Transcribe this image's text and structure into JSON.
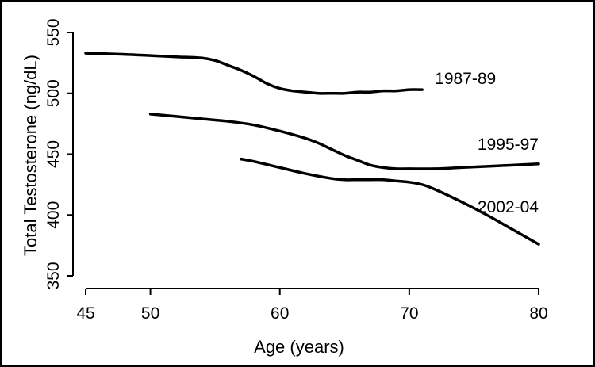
{
  "chart_data": {
    "type": "line",
    "title": "",
    "xlabel": "Age (years)",
    "ylabel": "Total Testosterone (ng/dL)",
    "xlim": [
      45,
      80
    ],
    "ylim": [
      350,
      550
    ],
    "xticks": [
      45,
      50,
      60,
      70,
      80
    ],
    "yticks": [
      350,
      400,
      450,
      500,
      550
    ],
    "grid": false,
    "legend": "none",
    "series": [
      {
        "name": "1987-89",
        "x": [
          45,
          48,
          50,
          52,
          54,
          55,
          56,
          57,
          58,
          59,
          60,
          61,
          62,
          63,
          64,
          65,
          66,
          67,
          68,
          69,
          70,
          71
        ],
        "y": [
          533,
          532,
          531,
          530,
          529,
          527,
          523,
          519,
          514,
          508,
          504,
          502,
          501,
          500,
          500,
          500,
          501,
          501,
          502,
          502,
          503,
          503
        ]
      },
      {
        "name": "1995-97",
        "x": [
          50,
          52,
          54,
          56,
          58,
          60,
          62,
          63,
          64,
          65,
          66,
          67,
          68,
          69,
          70,
          72,
          74,
          76,
          78,
          80
        ],
        "y": [
          483,
          481,
          479,
          477,
          474,
          469,
          463,
          459,
          454,
          449,
          445,
          441,
          439,
          438,
          438,
          438,
          439,
          440,
          441,
          442
        ]
      },
      {
        "name": "2002-04",
        "x": [
          57,
          58,
          60,
          62,
          64,
          65,
          66,
          67,
          68,
          69,
          70,
          71,
          72,
          74,
          76,
          78,
          80
        ],
        "y": [
          446,
          444,
          439,
          434,
          430,
          429,
          429,
          429,
          429,
          428,
          427,
          425,
          421,
          411,
          400,
          388,
          376
        ]
      }
    ]
  }
}
